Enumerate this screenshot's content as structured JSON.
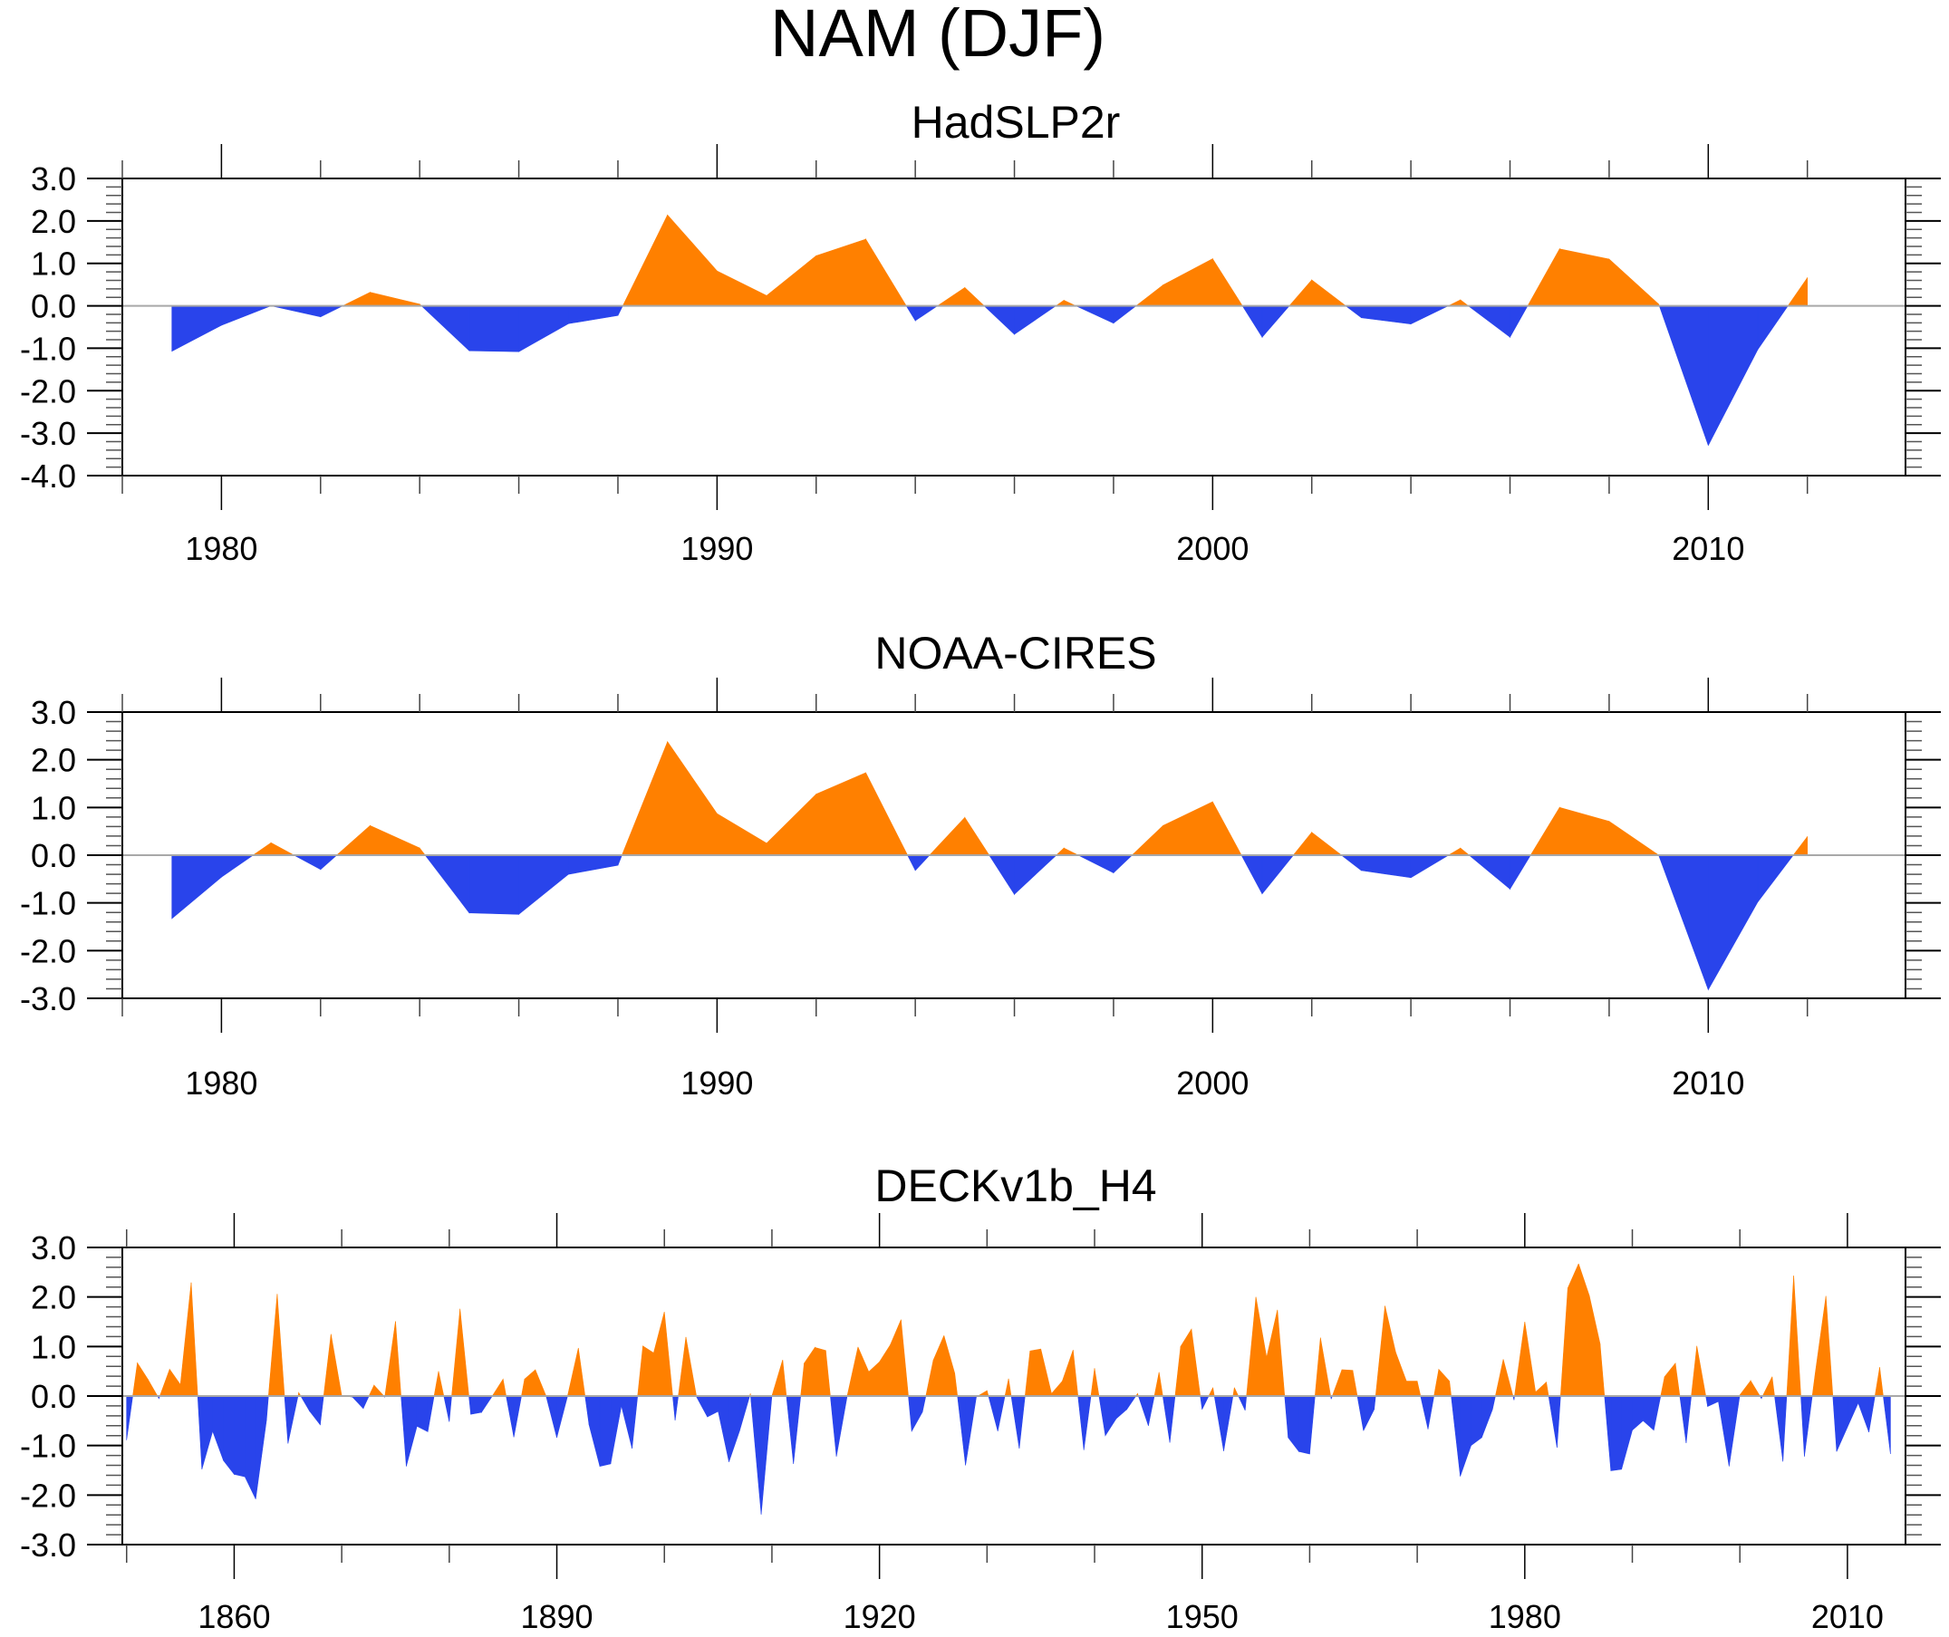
{
  "figure": {
    "title": "NAM (DJF)"
  },
  "colors": {
    "positive": "#FF8000",
    "negative": "#2944EB",
    "zero_line": "#A8A8A8",
    "frame": "#000000"
  },
  "chart_data": [
    {
      "type": "area",
      "title": "HadSLP2r",
      "xlabel": "",
      "ylabel": "",
      "xlim": [
        1978.0,
        2013.98
      ],
      "ylim": [
        -4.0,
        3.0
      ],
      "yticks": [
        3.0,
        2.0,
        1.0,
        0.0,
        -1.0,
        -2.0,
        -3.0,
        -4.0
      ],
      "ytick_labels": [
        "3.0",
        "2.0",
        "1.0",
        "0.0",
        "-1.0",
        "-2.0",
        "-3.0",
        "-4.0"
      ],
      "xticks_major": [
        1980,
        1990,
        2000,
        2010
      ],
      "xtick_labels": [
        "1980",
        "1990",
        "2000",
        "2010"
      ],
      "xtick_minor_step": 2,
      "fill_above_zero": "positive",
      "fill_below_zero": "negative",
      "x": [
        1979,
        1980,
        1981,
        1982,
        1983,
        1984,
        1985,
        1986,
        1987,
        1988,
        1989,
        1990,
        1991,
        1992,
        1993,
        1994,
        1995,
        1996,
        1997,
        1998,
        1999,
        2000,
        2001,
        2002,
        2003,
        2004,
        2005,
        2006,
        2007,
        2008,
        2009,
        2010,
        2011,
        2012
      ],
      "values": [
        -1.07,
        -0.46,
        0.0,
        -0.26,
        0.32,
        0.04,
        -1.06,
        -1.08,
        -0.42,
        -0.23,
        2.14,
        0.82,
        0.24,
        1.18,
        1.57,
        -0.35,
        0.43,
        -0.67,
        0.13,
        -0.41,
        0.49,
        1.11,
        -0.74,
        0.61,
        -0.28,
        -0.43,
        0.14,
        -0.74,
        1.34,
        1.1,
        0.04,
        -3.29,
        -1.03,
        0.66
      ]
    },
    {
      "type": "area",
      "title": "NOAA-CIRES",
      "xlabel": "",
      "ylabel": "",
      "xlim": [
        1978.0,
        2013.98
      ],
      "ylim": [
        -3.0,
        3.0
      ],
      "yticks": [
        3.0,
        2.0,
        1.0,
        0.0,
        -1.0,
        -2.0,
        -3.0
      ],
      "ytick_labels": [
        "3.0",
        "2.0",
        "1.0",
        "0.0",
        "-1.0",
        "-2.0",
        "-3.0"
      ],
      "xticks_major": [
        1980,
        1990,
        2000,
        2010
      ],
      "xtick_labels": [
        "1980",
        "1990",
        "2000",
        "2010"
      ],
      "xtick_minor_step": 2,
      "fill_above_zero": "positive",
      "fill_below_zero": "negative",
      "x": [
        1979,
        1980,
        1981,
        1982,
        1983,
        1984,
        1985,
        1986,
        1987,
        1988,
        1989,
        1990,
        1991,
        1992,
        1993,
        1994,
        1995,
        1996,
        1997,
        1998,
        1999,
        2000,
        2001,
        2002,
        2003,
        2004,
        2005,
        2006,
        2007,
        2008,
        2009,
        2010,
        2011,
        2012
      ],
      "values": [
        -1.33,
        -0.46,
        0.26,
        -0.3,
        0.62,
        0.15,
        -1.21,
        -1.24,
        -0.4,
        -0.21,
        2.38,
        0.87,
        0.25,
        1.28,
        1.73,
        -0.32,
        0.79,
        -0.82,
        0.15,
        -0.37,
        0.62,
        1.12,
        -0.81,
        0.48,
        -0.32,
        -0.47,
        0.15,
        -0.71,
        1.0,
        0.71,
        0.0,
        -2.82,
        -0.98,
        0.39
      ]
    },
    {
      "type": "area",
      "title": "DECKv1b_H4",
      "xlabel": "",
      "ylabel": "",
      "xlim": [
        1849.6,
        2015.4
      ],
      "ylim": [
        -3.0,
        3.0
      ],
      "yticks": [
        3.0,
        2.0,
        1.0,
        0.0,
        -1.0,
        -2.0,
        -3.0
      ],
      "ytick_labels": [
        "3.0",
        "2.0",
        "1.0",
        "0.0",
        "-1.0",
        "-2.0",
        "-3.0"
      ],
      "xticks_major": [
        1860,
        1890,
        1920,
        1950,
        1980,
        2010
      ],
      "xtick_labels": [
        "1860",
        "1890",
        "1920",
        "1950",
        "1980",
        "2010"
      ],
      "xtick_minor_step": 10,
      "fill_above_zero": "positive",
      "fill_below_zero": "negative",
      "x_start": 1850,
      "x_end": 2014,
      "values": [
        -0.89,
        0.67,
        0.33,
        -0.05,
        0.54,
        0.23,
        2.29,
        -1.48,
        -0.71,
        -1.3,
        -1.58,
        -1.63,
        -2.08,
        -0.49,
        2.06,
        -0.96,
        0.07,
        -0.3,
        -0.58,
        1.25,
        0.01,
        -0.02,
        -0.25,
        0.22,
        -0.02,
        1.51,
        -1.42,
        -0.61,
        -0.72,
        0.5,
        -0.52,
        1.76,
        -0.37,
        -0.33,
        0.0,
        0.34,
        -0.83,
        0.34,
        0.53,
        0.0,
        -0.84,
        0.0,
        0.97,
        -0.58,
        -1.42,
        -1.37,
        -0.2,
        -1.06,
        1.01,
        0.87,
        1.7,
        -0.49,
        1.19,
        -0.02,
        -0.42,
        -0.31,
        -1.33,
        -0.7,
        0.05,
        -2.39,
        0.0,
        0.73,
        -1.37,
        0.66,
        0.98,
        0.92,
        -1.22,
        0.0,
        0.99,
        0.49,
        0.69,
        1.03,
        1.54,
        -0.71,
        -0.32,
        0.72,
        1.22,
        0.46,
        -1.4,
        -0.02,
        0.11,
        -0.71,
        0.35,
        -1.06,
        0.91,
        0.95,
        0.05,
        0.3,
        0.93,
        -1.09,
        0.56,
        -0.8,
        -0.46,
        -0.27,
        0.05,
        -0.6,
        0.48,
        -0.94,
        1.0,
        1.35,
        -0.27,
        0.17,
        -1.11,
        0.17,
        -0.29,
        2.0,
        0.78,
        1.74,
        -0.84,
        -1.12,
        -1.17,
        1.18,
        -0.06,
        0.53,
        0.52,
        -0.7,
        -0.27,
        1.82,
        0.88,
        0.3,
        0.3,
        -0.67,
        0.54,
        0.3,
        -1.62,
        -1.0,
        -0.84,
        -0.27,
        0.74,
        -0.08,
        1.5,
        0.08,
        0.28,
        -1.04,
        2.18,
        2.67,
        2.03,
        1.06,
        -1.51,
        -1.48,
        -0.69,
        -0.5,
        -0.69,
        0.39,
        0.66,
        -0.95,
        1.01,
        -0.21,
        -0.11,
        -1.42,
        0.02,
        0.31,
        -0.05,
        0.39,
        -1.32,
        2.43,
        -1.22,
        0.45,
        2.02,
        -1.12,
        -0.63,
        -0.14,
        -0.73,
        0.58,
        -1.17
      ]
    }
  ]
}
